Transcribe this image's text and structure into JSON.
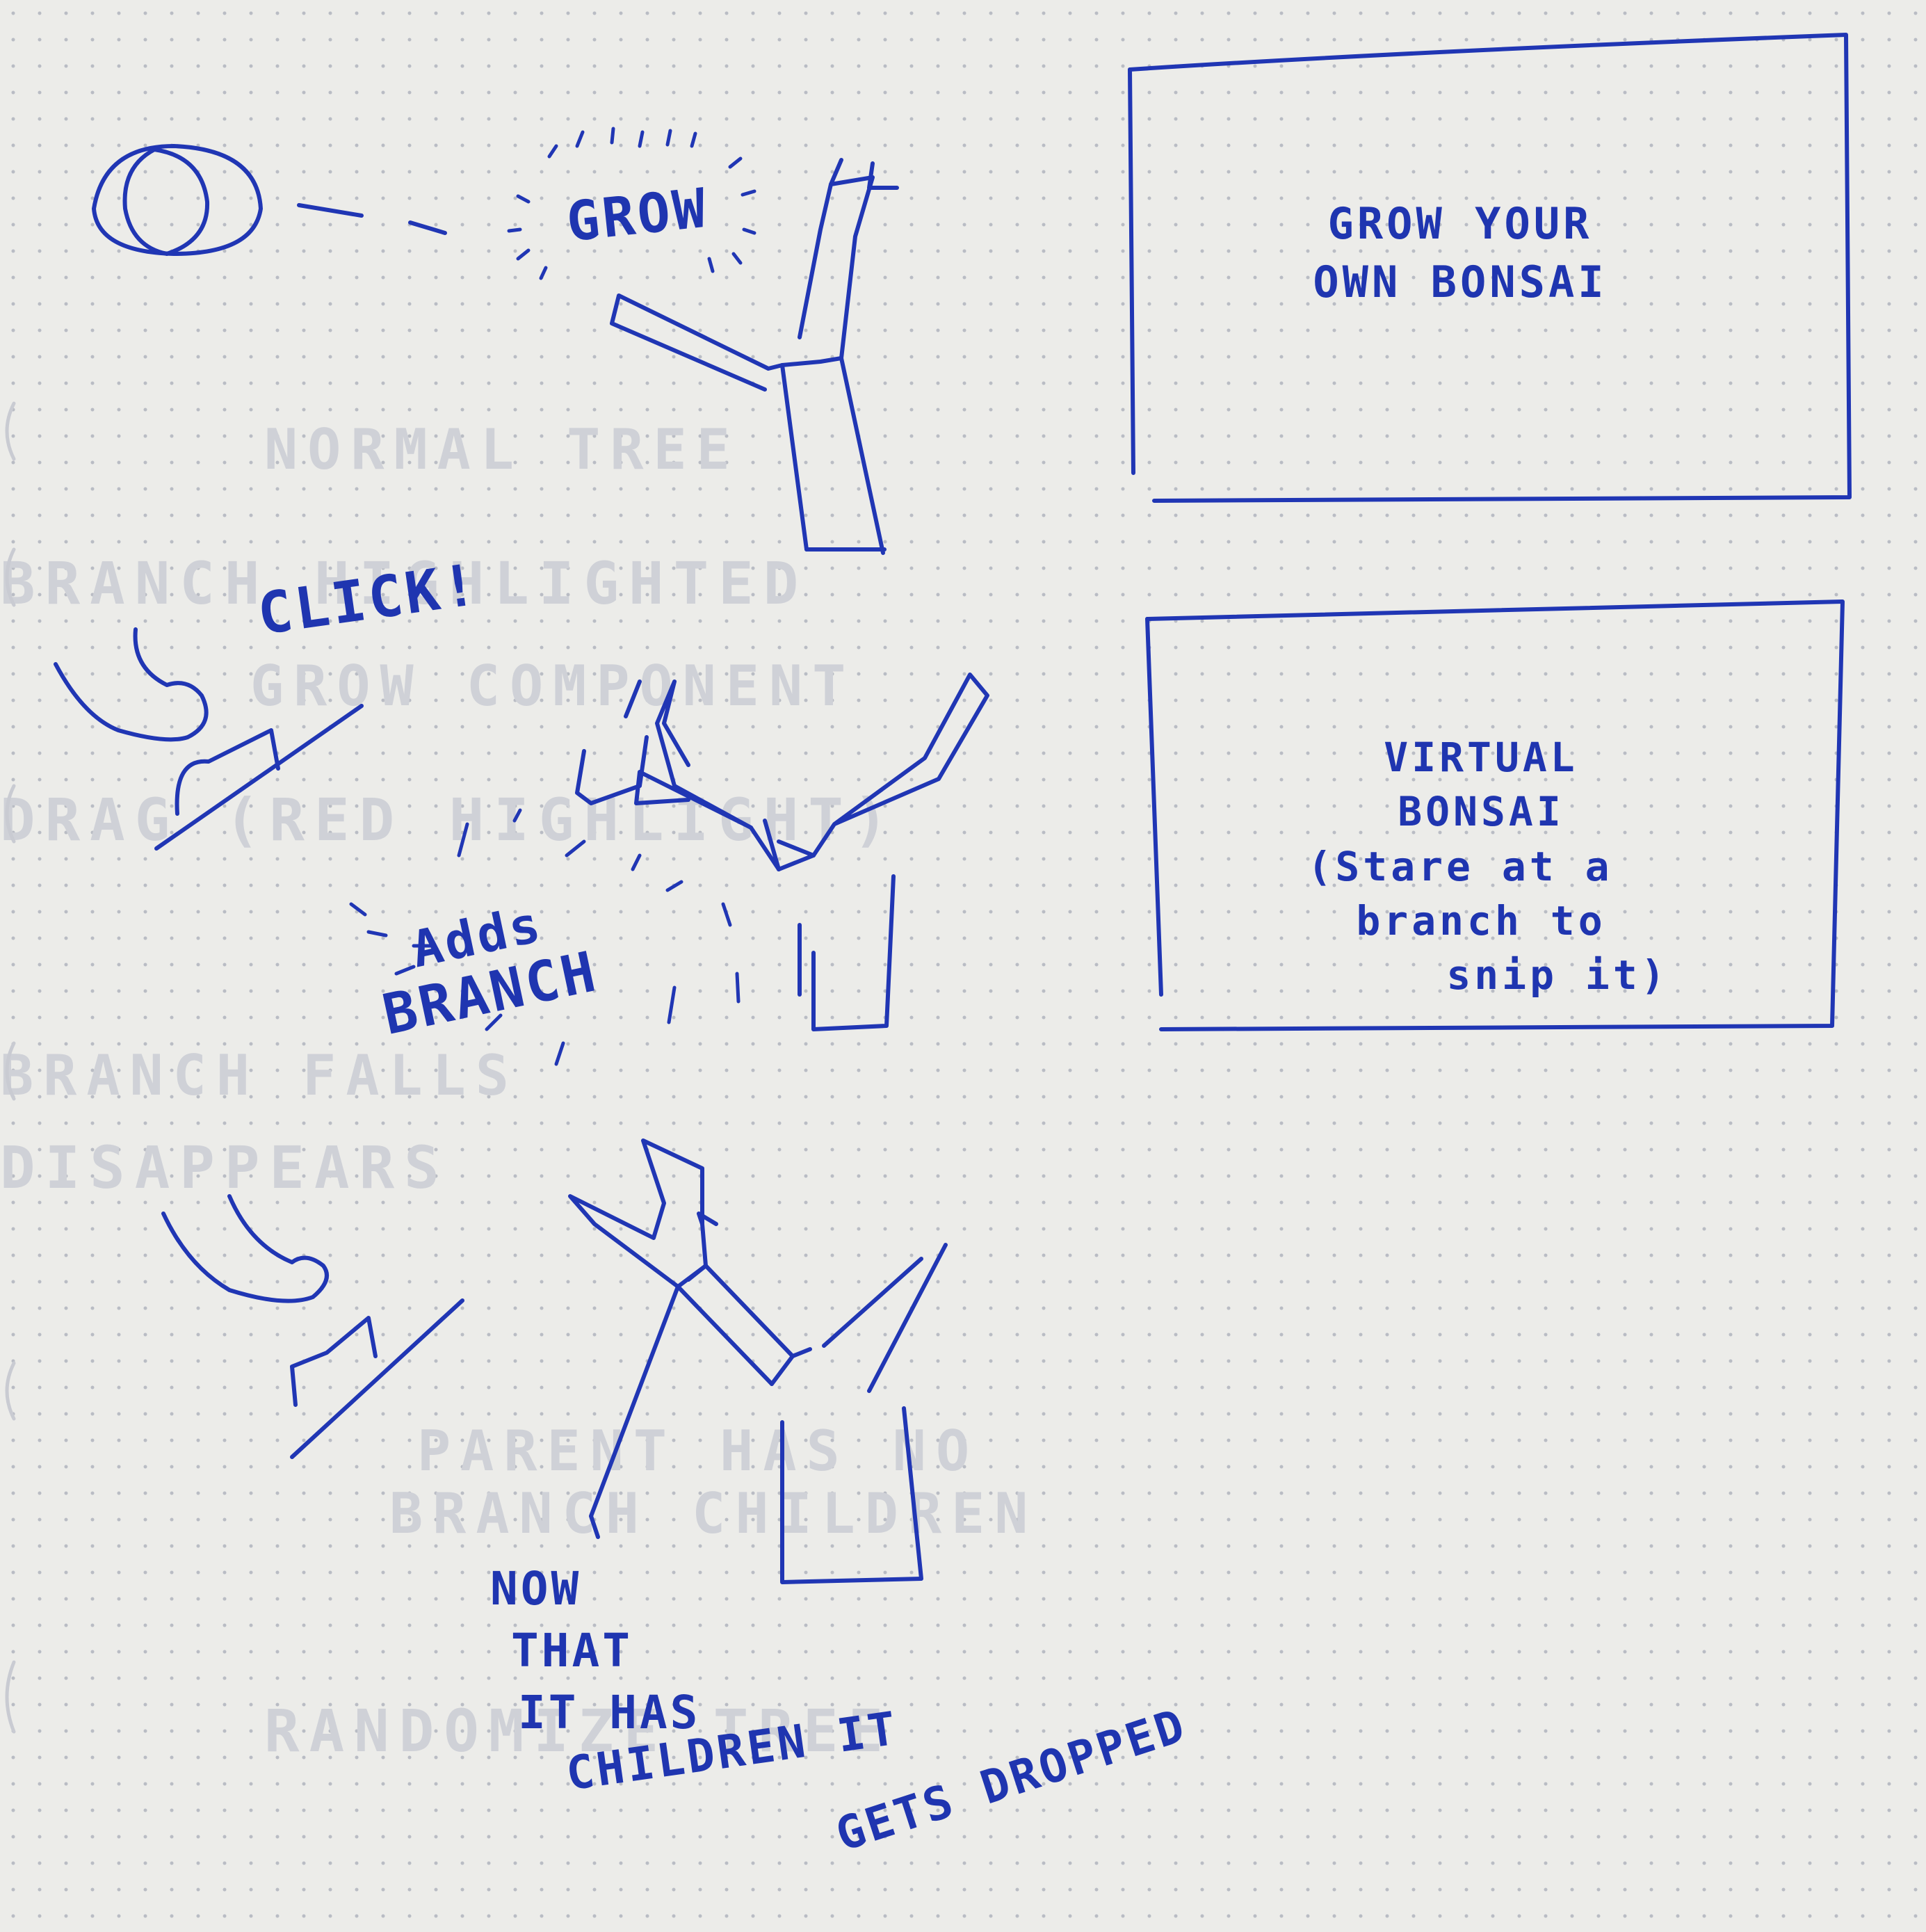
{
  "frame1": {
    "burst_text": "GROW",
    "panel_line1": "GROW YOUR",
    "panel_line2": "OWN BONSAI"
  },
  "frame2": {
    "click_text": "CLICK!",
    "burst_line1": "Adds",
    "burst_line2": "BRANCH",
    "panel_line1": "VIRTUAL",
    "panel_line2": "BONSAI",
    "panel_line3": "(Stare at a",
    "panel_line4": "branch to",
    "panel_line5": "snip it)"
  },
  "frame3": {
    "note_line1": "NOW",
    "note_line2": "THAT",
    "note_line3": "IT HAS",
    "note_line4": "CHILDREN IT",
    "note_line5": "GETS DROPPED"
  },
  "colors": {
    "ink": "#2036b4",
    "paper": "#ecece9",
    "ghost": "#c9cbd2"
  }
}
